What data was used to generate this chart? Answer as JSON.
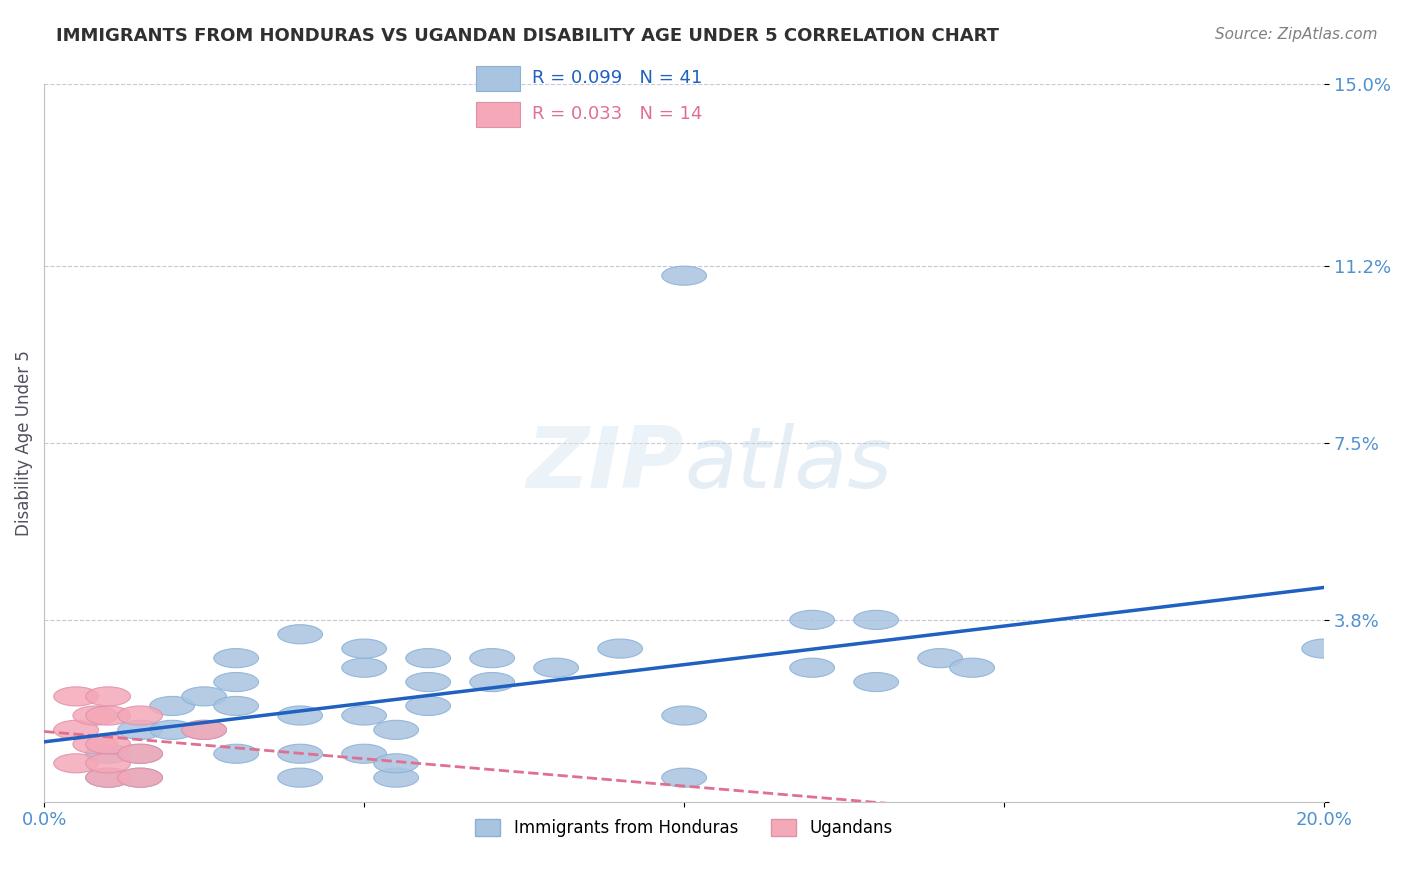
{
  "title": "IMMIGRANTS FROM HONDURAS VS UGANDAN DISABILITY AGE UNDER 5 CORRELATION CHART",
  "source": "Source: ZipAtlas.com",
  "ylabel": "Disability Age Under 5",
  "xlabel": "",
  "xlim": [
    0.0,
    0.2
  ],
  "ylim": [
    0.0,
    0.15
  ],
  "yticks": [
    0.0,
    0.038,
    0.075,
    0.112,
    0.15
  ],
  "ytick_labels": [
    "",
    "3.8%",
    "7.5%",
    "11.2%",
    "15.0%"
  ],
  "xticks": [
    0.0,
    0.05,
    0.1,
    0.15,
    0.2
  ],
  "xtick_labels": [
    "0.0%",
    "",
    "",
    "",
    "20.0%"
  ],
  "blue_R": 0.099,
  "blue_N": 41,
  "pink_R": 0.033,
  "pink_N": 14,
  "blue_color": "#a8c4e0",
  "pink_color": "#f4a8b8",
  "blue_line_color": "#2060c0",
  "pink_line_color": "#e07090",
  "title_color": "#303030",
  "axis_color": "#5090d0",
  "blue_scatter_x": [
    0.01,
    0.01,
    0.015,
    0.015,
    0.015,
    0.02,
    0.02,
    0.025,
    0.025,
    0.03,
    0.03,
    0.03,
    0.03,
    0.04,
    0.04,
    0.04,
    0.04,
    0.05,
    0.05,
    0.05,
    0.05,
    0.055,
    0.055,
    0.055,
    0.06,
    0.06,
    0.06,
    0.07,
    0.07,
    0.08,
    0.09,
    0.1,
    0.1,
    0.1,
    0.12,
    0.12,
    0.13,
    0.13,
    0.14,
    0.145,
    0.2
  ],
  "blue_scatter_y": [
    0.005,
    0.01,
    0.005,
    0.01,
    0.015,
    0.015,
    0.02,
    0.015,
    0.022,
    0.01,
    0.02,
    0.025,
    0.03,
    0.005,
    0.01,
    0.018,
    0.035,
    0.01,
    0.018,
    0.028,
    0.032,
    0.005,
    0.008,
    0.015,
    0.03,
    0.02,
    0.025,
    0.03,
    0.025,
    0.028,
    0.032,
    0.005,
    0.018,
    0.11,
    0.028,
    0.038,
    0.025,
    0.038,
    0.03,
    0.028,
    0.032
  ],
  "pink_scatter_x": [
    0.005,
    0.005,
    0.005,
    0.008,
    0.008,
    0.01,
    0.01,
    0.01,
    0.01,
    0.01,
    0.015,
    0.015,
    0.015,
    0.025
  ],
  "pink_scatter_y": [
    0.008,
    0.015,
    0.022,
    0.012,
    0.018,
    0.005,
    0.008,
    0.012,
    0.018,
    0.022,
    0.005,
    0.01,
    0.018,
    0.015
  ]
}
